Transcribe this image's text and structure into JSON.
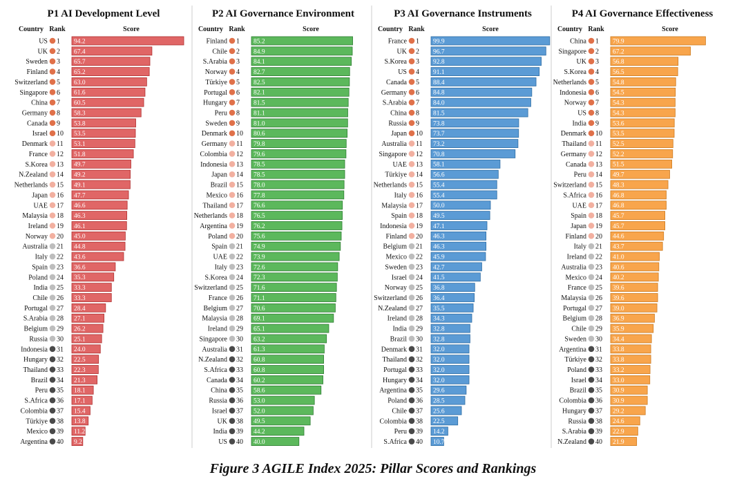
{
  "caption": "Figure 3 AGILE Index 2025: Pillar Scores and Rankings",
  "headers": {
    "country": "Country",
    "rank": "Rank",
    "score": "Score"
  },
  "colors": {
    "rank_top": "#e0714a",
    "rank_mid": "#f2b0a0",
    "rank_low": "#bdbdbd",
    "rank_bottom": "#4a4a4a"
  },
  "chart_data": [
    {
      "type": "bar",
      "title": "P1 AI Development Level",
      "color": "#e06666",
      "stroke": "#b03030",
      "xlim": [
        0,
        100
      ],
      "categories": [
        "US",
        "UK",
        "Sweden",
        "Finland",
        "Switzerland",
        "Singapore",
        "China",
        "Germany",
        "Canada",
        "Israel",
        "Denmark",
        "France",
        "S.Korea",
        "N.Zealand",
        "Netherlands",
        "Japan",
        "UAE",
        "Malaysia",
        "Ireland",
        "Norway",
        "Australia",
        "Italy",
        "Spain",
        "Poland",
        "India",
        "Chile",
        "Portugal",
        "S.Arabia",
        "Belgium",
        "Russia",
        "Indonesia",
        "Hungary",
        "Thailand",
        "Brazil",
        "Peru",
        "S.Africa",
        "Colombia",
        "Türkiye",
        "Mexico",
        "Argentina"
      ],
      "values": [
        94.2,
        67.4,
        65.7,
        65.2,
        63.0,
        61.6,
        60.5,
        58.3,
        53.8,
        53.5,
        53.1,
        51.8,
        49.7,
        49.2,
        49.1,
        47.7,
        46.6,
        46.3,
        46.1,
        45.0,
        44.8,
        43.6,
        36.6,
        35.3,
        33.3,
        33.3,
        28.4,
        27.1,
        26.2,
        25.1,
        24.0,
        22.5,
        22.3,
        21.3,
        18.1,
        17.1,
        15.4,
        13.8,
        11.2,
        9.2
      ]
    },
    {
      "type": "bar",
      "title": "P2 AI Governance Environment",
      "color": "#5cb85c",
      "stroke": "#2e7d32",
      "xlim": [
        0,
        100
      ],
      "categories": [
        "Finland",
        "Chile",
        "S.Arabia",
        "Norway",
        "Türkiye",
        "Portugal",
        "Hungary",
        "Peru",
        "Sweden",
        "Denmark",
        "Germany",
        "Colombia",
        "Indonesia",
        "Japan",
        "Brazil",
        "Mexico",
        "Thailand",
        "Netherlands",
        "Argentina",
        "Poland",
        "Spain",
        "UAE",
        "Italy",
        "S.Korea",
        "Switzerland",
        "France",
        "Belgium",
        "Malaysia",
        "Ireland",
        "Singapore",
        "Australia",
        "N.Zealand",
        "S.Africa",
        "Canada",
        "China",
        "Russia",
        "Israel",
        "UK",
        "India",
        "US"
      ],
      "values": [
        85.2,
        84.9,
        84.1,
        82.7,
        82.5,
        82.1,
        81.5,
        81.1,
        81.0,
        80.6,
        79.8,
        79.6,
        78.5,
        78.5,
        78.0,
        77.8,
        76.6,
        76.5,
        76.2,
        75.6,
        74.9,
        73.9,
        72.6,
        72.3,
        71.6,
        71.1,
        70.6,
        69.1,
        65.1,
        63.2,
        61.3,
        60.8,
        60.8,
        60.2,
        58.6,
        53.0,
        52.0,
        49.5,
        44.2,
        40.0
      ]
    },
    {
      "type": "bar",
      "title": "P3 AI Governance Instruments",
      "color": "#5b9bd5",
      "stroke": "#2e6da4",
      "xlim": [
        0,
        100
      ],
      "categories": [
        "France",
        "UK",
        "S.Korea",
        "US",
        "Canada",
        "Germany",
        "S.Arabia",
        "China",
        "Russia",
        "Japan",
        "Australia",
        "Singapore",
        "UAE",
        "Türkiye",
        "Netherlands",
        "Italy",
        "Malaysia",
        "Spain",
        "Indonesia",
        "Finland",
        "Belgium",
        "Mexico",
        "Sweden",
        "Israel",
        "Norway",
        "Switzerland",
        "N.Zealand",
        "Ireland",
        "India",
        "Brazil",
        "Denmark",
        "Thailand",
        "Portugal",
        "Hungary",
        "Argentina",
        "Poland",
        "Chile",
        "Colombia",
        "Peru",
        "S.Africa"
      ],
      "values": [
        99.9,
        96.7,
        92.8,
        91.1,
        88.4,
        84.8,
        84.0,
        81.5,
        73.8,
        73.7,
        73.2,
        70.8,
        58.1,
        56.6,
        55.4,
        55.4,
        50.0,
        49.5,
        47.1,
        46.3,
        46.3,
        45.9,
        42.7,
        41.5,
        36.8,
        36.4,
        35.5,
        34.3,
        32.8,
        32.8,
        32.0,
        32.0,
        32.0,
        32.0,
        29.6,
        28.5,
        25.6,
        22.5,
        14.2,
        10.7
      ]
    },
    {
      "type": "bar",
      "title": "P4 AI Governance Effectiveness",
      "color": "#f8a54c",
      "stroke": "#cc7a1f",
      "xlim": [
        0,
        100
      ],
      "categories": [
        "China",
        "Singapore",
        "UK",
        "S.Korea",
        "Netherlands",
        "Indonesia",
        "Norway",
        "US",
        "India",
        "Denmark",
        "Thailand",
        "Germany",
        "Canada",
        "Peru",
        "Switzerland",
        "S.Africa",
        "UAE",
        "Spain",
        "Japan",
        "Finland",
        "Italy",
        "Ireland",
        "Australia",
        "Mexico",
        "France",
        "Malaysia",
        "Portugal",
        "Belgium",
        "Chile",
        "Sweden",
        "Argentina",
        "Türkiye",
        "Poland",
        "Israel",
        "Brazil",
        "Colombia",
        "Hungary",
        "Russia",
        "S.Arabia",
        "N.Zealand"
      ],
      "values": [
        79.9,
        67.2,
        56.8,
        56.5,
        54.8,
        54.5,
        54.3,
        54.3,
        53.6,
        53.5,
        52.5,
        52.2,
        51.5,
        49.7,
        48.3,
        46.8,
        46.8,
        45.7,
        45.7,
        44.6,
        43.7,
        41.0,
        40.6,
        40.2,
        39.6,
        39.6,
        39.0,
        36.9,
        35.9,
        34.4,
        33.8,
        33.8,
        33.2,
        33.0,
        30.9,
        30.9,
        29.2,
        24.6,
        22.9,
        21.9
      ]
    }
  ]
}
